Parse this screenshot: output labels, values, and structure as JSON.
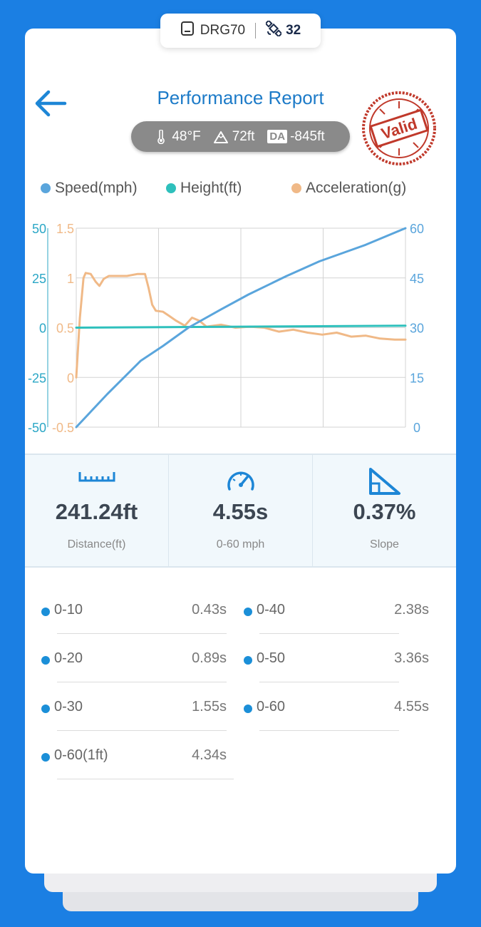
{
  "device": {
    "name": "DRG70",
    "satellites": "32"
  },
  "header": {
    "title": "Performance Report",
    "stamp_text": "Valid"
  },
  "conditions": {
    "temperature": "48°F",
    "altitude": "72ft",
    "da_badge": "DA",
    "density_altitude": "-845ft"
  },
  "legend": [
    {
      "label": "Speed(mph)",
      "color": "#5aa5dc"
    },
    {
      "label": "Height(ft)",
      "color": "#2ec0bc"
    },
    {
      "label": "Acceleration(g)",
      "color": "#f0b987"
    }
  ],
  "chart_data": {
    "type": "line",
    "x_range": [
      0,
      4.55
    ],
    "grid": true,
    "axes": {
      "height": {
        "ticks": [
          "50",
          "25",
          "0",
          "-25",
          "-50"
        ],
        "range": [
          -50,
          50
        ],
        "color": "#2ba7c6"
      },
      "acceleration": {
        "ticks": [
          "1.5",
          "1",
          "0.5",
          "0",
          "-0.5"
        ],
        "range": [
          -0.5,
          1.5
        ],
        "color": "#f0b987"
      },
      "speed": {
        "ticks": [
          "60",
          "45",
          "30",
          "15",
          "0"
        ],
        "range": [
          0,
          60
        ],
        "color": "#5aa5dc"
      }
    },
    "series": [
      {
        "name": "Speed(mph)",
        "axis": "speed",
        "color": "#5aa5dc",
        "x": [
          0,
          0.43,
          0.89,
          1.2,
          1.55,
          2.0,
          2.38,
          2.9,
          3.36,
          4.0,
          4.55
        ],
        "y": [
          0,
          10,
          20,
          24.5,
          30,
          35.5,
          40,
          45.5,
          50,
          55,
          60
        ]
      },
      {
        "name": "Height(ft)",
        "axis": "height",
        "color": "#2ec0bc",
        "x": [
          0,
          4.55
        ],
        "y": [
          0,
          1
        ]
      },
      {
        "name": "Acceleration(g)",
        "axis": "acceleration",
        "color": "#f0b987",
        "x": [
          0,
          0.05,
          0.1,
          0.13,
          0.2,
          0.27,
          0.32,
          0.38,
          0.45,
          0.55,
          0.7,
          0.85,
          0.95,
          1.0,
          1.05,
          1.1,
          1.2,
          1.28,
          1.38,
          1.5,
          1.6,
          1.7,
          1.8,
          1.9,
          2.0,
          2.2,
          2.4,
          2.6,
          2.8,
          3.0,
          3.2,
          3.4,
          3.6,
          3.8,
          4.0,
          4.2,
          4.4,
          4.55
        ],
        "y": [
          0.0,
          0.6,
          1.0,
          1.05,
          1.04,
          0.96,
          0.92,
          0.99,
          1.02,
          1.02,
          1.02,
          1.04,
          1.04,
          0.9,
          0.73,
          0.67,
          0.66,
          0.62,
          0.57,
          0.52,
          0.6,
          0.57,
          0.51,
          0.52,
          0.53,
          0.5,
          0.51,
          0.5,
          0.46,
          0.48,
          0.45,
          0.43,
          0.45,
          0.41,
          0.42,
          0.39,
          0.38,
          0.38
        ]
      }
    ]
  },
  "stats": [
    {
      "value": "241.24ft",
      "label": "Distance(ft)",
      "icon": "ruler-icon"
    },
    {
      "value": "4.55s",
      "label": "0-60 mph",
      "icon": "speedometer-icon"
    },
    {
      "value": "0.37%",
      "label": "Slope",
      "icon": "slope-icon"
    }
  ],
  "splits": [
    {
      "name": "0-10",
      "time": "0.43s"
    },
    {
      "name": "0-40",
      "time": "2.38s"
    },
    {
      "name": "0-20",
      "time": "0.89s"
    },
    {
      "name": "0-50",
      "time": "3.36s"
    },
    {
      "name": "0-30",
      "time": "1.55s"
    },
    {
      "name": "0-60",
      "time": "4.55s"
    },
    {
      "name": "0-60(1ft)",
      "time": "4.34s"
    }
  ]
}
